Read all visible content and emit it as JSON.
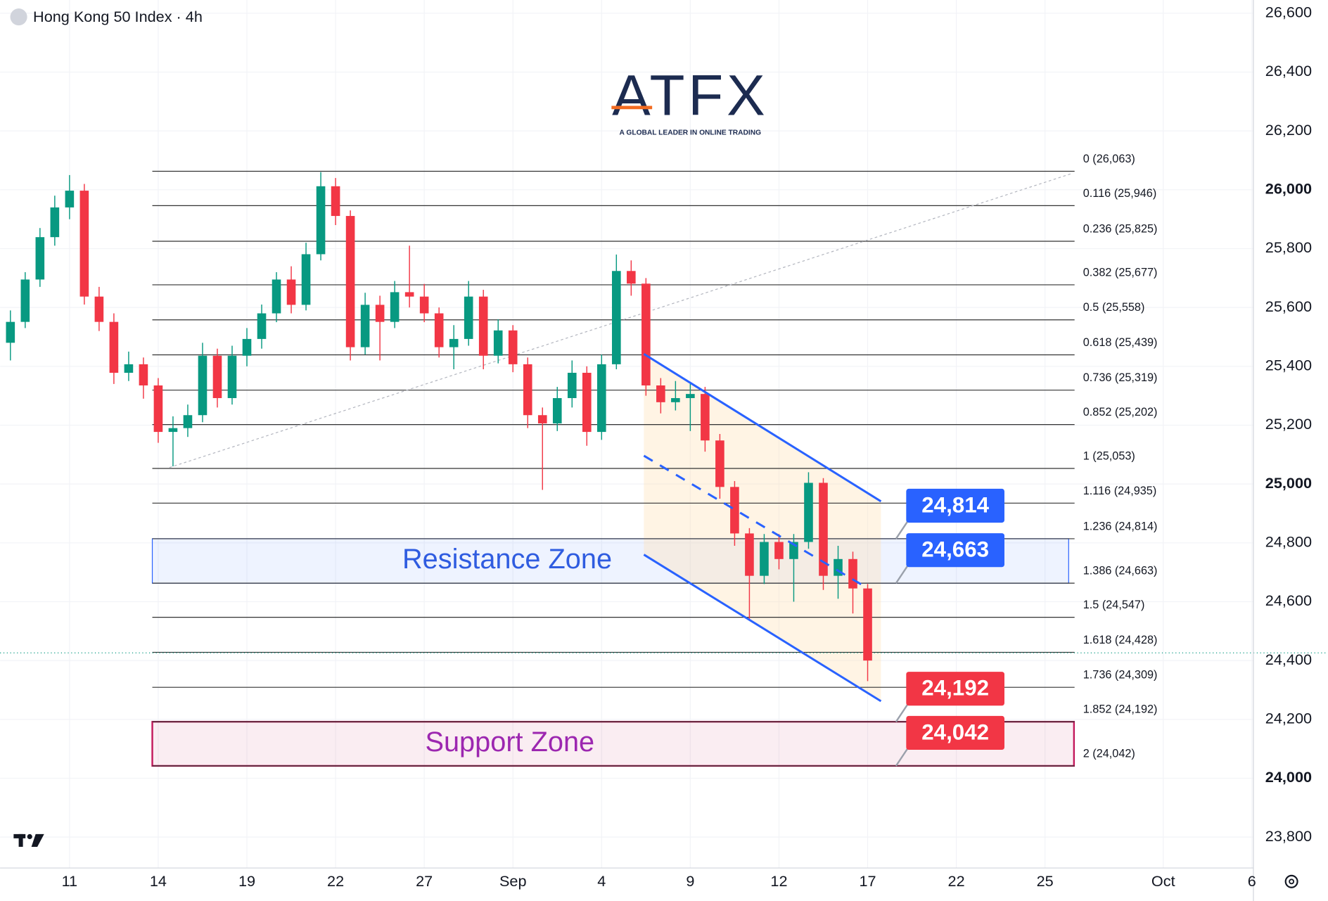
{
  "branding": {
    "name": "ATFX",
    "tagline": "A GLOBAL LEADER IN ONLINE TRADING"
  },
  "chart_data": {
    "type": "candlestick",
    "title": "Hong Kong 50 Index · 4h",
    "up_color": "#089981",
    "down_color": "#f23645",
    "grid": true,
    "xlim": [
      -2.35,
      40.05
    ],
    "ylim": [
      23695,
      26645
    ],
    "xticks": [
      {
        "value": 0,
        "label": "11"
      },
      {
        "value": 3,
        "label": "14"
      },
      {
        "value": 6,
        "label": "19"
      },
      {
        "value": 9,
        "label": "22"
      },
      {
        "value": 12,
        "label": "27"
      },
      {
        "value": 15,
        "label": "Sep"
      },
      {
        "value": 18,
        "label": "4"
      },
      {
        "value": 21,
        "label": "9"
      },
      {
        "value": 24,
        "label": "12"
      },
      {
        "value": 27,
        "label": "17"
      },
      {
        "value": 30,
        "label": "22"
      },
      {
        "value": 33,
        "label": "25"
      },
      {
        "value": 37,
        "label": "Oct"
      },
      {
        "value": 40,
        "label": "6"
      }
    ],
    "yticks": [
      {
        "value": 23800,
        "label": "23,800"
      },
      {
        "value": 24000,
        "label": "24,000"
      },
      {
        "value": 24200,
        "label": "24,200"
      },
      {
        "value": 24400,
        "label": "24,400"
      },
      {
        "value": 24600,
        "label": "24,600"
      },
      {
        "value": 24800,
        "label": "24,800"
      },
      {
        "value": 25000,
        "label": "25,000"
      },
      {
        "value": 25200,
        "label": "25,200"
      },
      {
        "value": 25400,
        "label": "25,400"
      },
      {
        "value": 25600,
        "label": "25,600"
      },
      {
        "value": 25800,
        "label": "25,800"
      },
      {
        "value": 26000,
        "label": "26,000"
      },
      {
        "value": 26200,
        "label": "26,200"
      },
      {
        "value": 26400,
        "label": "26,400"
      },
      {
        "value": 26600,
        "label": "26,600"
      }
    ],
    "x": [
      -2,
      -1.5,
      -1,
      -0.5,
      0,
      0.5,
      1,
      1.5,
      2,
      2.5,
      3,
      3.5,
      4,
      4.5,
      5,
      5.5,
      6,
      6.5,
      7,
      7.5,
      8,
      8.5,
      9,
      9.5,
      10,
      10.5,
      11,
      11.5,
      12,
      12.5,
      13,
      13.5,
      14,
      14.5,
      15,
      15.5,
      16,
      16.5,
      17,
      17.5,
      18,
      18.5,
      19,
      19.5,
      20,
      20.5,
      21,
      21.5,
      22,
      22.5,
      23,
      23.5,
      24,
      24.5,
      25,
      25.5,
      26,
      26.5,
      27
    ],
    "open": [
      25480,
      25551,
      25695,
      25839,
      25940,
      25997,
      25637,
      25551,
      25378,
      25407,
      25335,
      25177,
      25190,
      25234,
      25436,
      25292,
      25436,
      25493,
      25580,
      25695,
      25609,
      25781,
      26012,
      25911,
      25465,
      25609,
      25551,
      25652,
      25637,
      25580,
      25465,
      25493,
      25637,
      25436,
      25522,
      25407,
      25234,
      25206,
      25292,
      25378,
      25177,
      25407,
      25724,
      25681,
      25335,
      25278,
      25292,
      25306,
      25148,
      24990,
      24832,
      24688,
      24803,
      24745,
      24803,
      25004,
      24688,
      24745,
      24645
    ],
    "high": [
      25590,
      25720,
      25870,
      25980,
      26050,
      26020,
      25670,
      25580,
      25450,
      25430,
      25360,
      25230,
      25270,
      25480,
      25460,
      25470,
      25530,
      25610,
      25720,
      25740,
      25820,
      26060,
      26040,
      25930,
      25650,
      25640,
      25690,
      25810,
      25680,
      25600,
      25540,
      25690,
      25660,
      25560,
      25540,
      25430,
      25260,
      25330,
      25420,
      25400,
      25440,
      25780,
      25760,
      25700,
      25360,
      25350,
      25340,
      25330,
      25170,
      25010,
      24850,
      24830,
      24830,
      24830,
      25040,
      25020,
      24790,
      24770,
      24660
    ],
    "low": [
      25420,
      25530,
      25670,
      25810,
      25900,
      25610,
      25520,
      25340,
      25350,
      25290,
      25140,
      25060,
      25160,
      25210,
      25260,
      25270,
      25400,
      25460,
      25550,
      25580,
      25590,
      25760,
      25880,
      25420,
      25440,
      25420,
      25530,
      25600,
      25550,
      25430,
      25390,
      25470,
      25390,
      25410,
      25380,
      25190,
      24980,
      25180,
      25260,
      25130,
      25150,
      25390,
      25640,
      25300,
      25240,
      25250,
      25180,
      25110,
      24950,
      24790,
      24540,
      24660,
      24710,
      24600,
      24780,
      24640,
      24610,
      24560,
      24330
    ],
    "close": [
      25551,
      25695,
      25839,
      25940,
      25997,
      25637,
      25551,
      25378,
      25407,
      25335,
      25177,
      25190,
      25234,
      25436,
      25292,
      25436,
      25493,
      25580,
      25695,
      25609,
      25781,
      26012,
      25911,
      25465,
      25609,
      25551,
      25652,
      25637,
      25580,
      25465,
      25493,
      25637,
      25436,
      25522,
      25407,
      25234,
      25206,
      25292,
      25378,
      25177,
      25407,
      25724,
      25681,
      25335,
      25278,
      25292,
      25306,
      25148,
      24990,
      24832,
      24688,
      24803,
      24745,
      24803,
      25004,
      24688,
      24745,
      24645,
      24400
    ],
    "last_price": 24426,
    "fib_x": [
      2.8,
      34.0
    ],
    "fib_levels": [
      {
        "value": 26063,
        "label": "0 (26,063)"
      },
      {
        "value": 25946,
        "label": "0.116 (25,946)"
      },
      {
        "value": 25825,
        "label": "0.236 (25,825)"
      },
      {
        "value": 25677,
        "label": "0.382 (25,677)"
      },
      {
        "value": 25558,
        "label": "0.5 (25,558)"
      },
      {
        "value": 25439,
        "label": "0.618 (25,439)"
      },
      {
        "value": 25319,
        "label": "0.736 (25,319)"
      },
      {
        "value": 25202,
        "label": "0.852 (25,202)"
      },
      {
        "value": 25053,
        "label": "1 (25,053)"
      },
      {
        "value": 24935,
        "label": "1.116 (24,935)"
      },
      {
        "value": 24814,
        "label": "1.236 (24,814)"
      },
      {
        "value": 24663,
        "label": "1.386 (24,663)"
      },
      {
        "value": 24547,
        "label": "1.5 (24,547)"
      },
      {
        "value": 24428,
        "label": "1.618 (24,428)"
      },
      {
        "value": 24309,
        "label": "1.736 (24,309)"
      },
      {
        "value": 24192,
        "label": "1.852 (24,192)"
      },
      {
        "value": 24042,
        "label": "2 (24,042)"
      }
    ],
    "zones": [
      {
        "label": "Resistance Zone",
        "x": [
          2.8,
          33.8
        ],
        "range": [
          24663,
          24814
        ],
        "color": "#2962ff",
        "text_color": "#2f5ce0"
      },
      {
        "label": "Support Zone",
        "x": [
          2.8,
          33.98
        ],
        "range": [
          24042,
          24192
        ],
        "color": "#c2185b",
        "text_color": "#9c27b0"
      }
    ],
    "price_tags": [
      {
        "value": 24814,
        "label": "24,814",
        "color": "#2962ff"
      },
      {
        "value": 24663,
        "label": "24,663",
        "color": "#2962ff"
      },
      {
        "value": 24192,
        "label": "24,192",
        "color": "#f23645"
      },
      {
        "value": 24042,
        "label": "24,042",
        "color": "#f23645"
      }
    ],
    "channel": {
      "color": "#2962ff",
      "upper": {
        "x": [
          19.43,
          27.45
        ],
        "y": [
          25442,
          24941
        ]
      },
      "lower": {
        "x": [
          19.43,
          27.45
        ],
        "y": [
          24760,
          24262
        ]
      },
      "mid": {
        "x": [
          19.43,
          26.88
        ],
        "y": [
          25096,
          24653
        ]
      }
    },
    "trend_line": {
      "x": [
        3.38,
        33.9
      ],
      "y": [
        25056,
        26055
      ]
    }
  }
}
